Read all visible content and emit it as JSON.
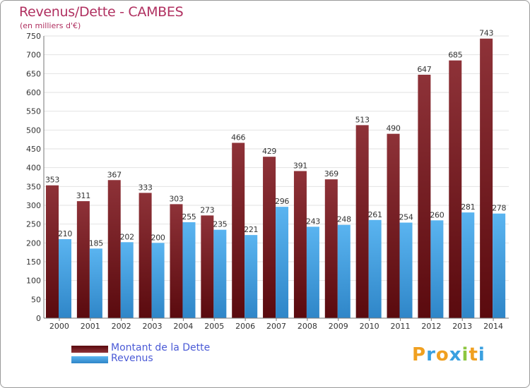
{
  "chart_data": {
    "type": "bar",
    "title": "Revenus/Dette - CAMBES",
    "subtitle": "(en milliers d'€)",
    "categories": [
      "2000",
      "2001",
      "2002",
      "2003",
      "2004",
      "2005",
      "2006",
      "2007",
      "2008",
      "2009",
      "2010",
      "2011",
      "2012",
      "2013",
      "2014"
    ],
    "series": [
      {
        "name": "Montant de la Dette",
        "color": "#7a1a1f",
        "values": [
          353,
          311,
          367,
          333,
          303,
          273,
          466,
          429,
          391,
          369,
          513,
          490,
          647,
          685,
          743
        ]
      },
      {
        "name": "Revenus",
        "color": "#4aa3e6",
        "values": [
          210,
          185,
          202,
          200,
          255,
          235,
          221,
          296,
          243,
          248,
          261,
          254,
          260,
          281,
          278
        ]
      }
    ],
    "ylim": [
      0,
      750
    ],
    "yticks": [
      0,
      50,
      100,
      150,
      200,
      250,
      300,
      350,
      400,
      450,
      500,
      550,
      600,
      650,
      700,
      750
    ],
    "grid": true,
    "legend_position": "bottom-left"
  },
  "legend": {
    "debt_label": "Montant de la Dette",
    "revenue_label": "Revenus"
  },
  "logo": {
    "letters": [
      "P",
      "r",
      "o",
      "x",
      "i",
      "t",
      "i"
    ],
    "colors": [
      "#f0a020",
      "#3aa0e0",
      "#f0a020",
      "#3aa0e0",
      "#8cc63f",
      "#f0a020",
      "#3aa0e0"
    ]
  }
}
